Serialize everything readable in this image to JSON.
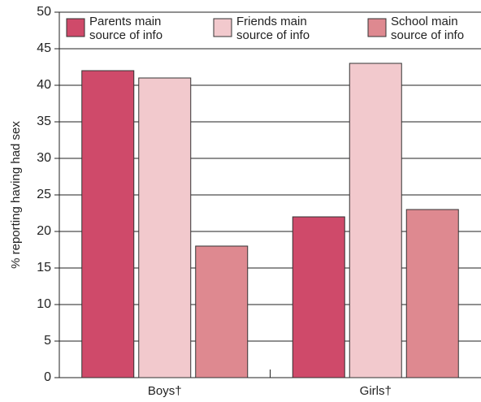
{
  "chart_data": {
    "type": "bar",
    "y_label": "% reporting having had sex",
    "categories": [
      "Boys†",
      "Girls†"
    ],
    "series": [
      {
        "name": "Parents main\nsource of info",
        "color": "#cf4a6a",
        "values": [
          42,
          22
        ]
      },
      {
        "name": "Friends main\nsource of info",
        "color": "#f2c9cd",
        "values": [
          41,
          43
        ]
      },
      {
        "name": "School main\nsource of info",
        "color": "#de8990",
        "values": [
          18,
          23
        ]
      }
    ],
    "ylim": [
      0,
      50
    ],
    "yticks": [
      0,
      5,
      10,
      15,
      20,
      25,
      30,
      35,
      40,
      45,
      50
    ],
    "grid": true,
    "legend": "top"
  }
}
